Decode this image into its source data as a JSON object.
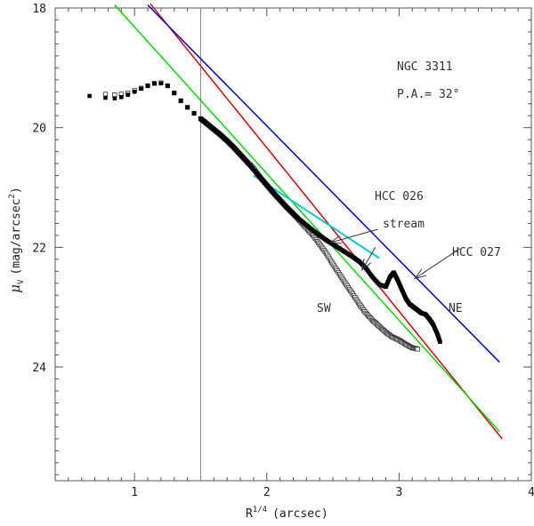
{
  "chart_data": {
    "type": "scatter",
    "title": "",
    "xlabel": "R",
    "xlabel_sup": "1/4",
    "xlabel_unit": "(arcsec)",
    "ylabel_sym": "μ",
    "ylabel_sub": "V",
    "ylabel_unit": "(mag/arcsec",
    "ylabel_sup": "2",
    "ylabel_close": ")",
    "xlim": [
      0.4,
      4.0
    ],
    "ylim": [
      18.0,
      25.9
    ],
    "y_inverted": true,
    "x_major_ticks": [
      1,
      2,
      3,
      4
    ],
    "x_tick_labels": [
      "1",
      "2",
      "3",
      "4"
    ],
    "y_major_ticks": [
      18,
      20,
      22,
      24
    ],
    "y_tick_labels": [
      "18",
      "20",
      "22",
      "24"
    ],
    "vertical_line_x": 1.5,
    "text_labels": {
      "galaxy": "NGC 3311",
      "pa": "P.A.= 32°",
      "hcc026": "HCC 026",
      "stream": "stream",
      "hcc027": "HCC 027",
      "sw": "SW",
      "ne": "NE"
    },
    "arrows": [
      {
        "name": "hcc026-arrow",
        "from": [
          2.84,
          21.7
        ],
        "to": [
          2.48,
          21.92
        ]
      },
      {
        "name": "stream-arrow",
        "from": [
          2.82,
          22.0
        ],
        "to": [
          2.72,
          22.38
        ]
      },
      {
        "name": "hcc027-arrow",
        "from": [
          3.46,
          22.02
        ],
        "to": [
          3.12,
          22.52
        ]
      }
    ],
    "series": [
      {
        "name": "NE profile",
        "marker": "filled-square",
        "color": "#000000",
        "x": [
          0.66,
          0.78,
          0.85,
          0.9,
          0.95,
          1.0,
          1.05,
          1.1,
          1.15,
          1.2,
          1.25,
          1.3,
          1.35,
          1.4,
          1.45,
          1.5,
          1.55,
          1.6,
          1.65,
          1.7,
          1.75,
          1.8,
          1.85,
          1.9,
          1.95,
          2.0,
          2.05,
          2.1,
          2.15,
          2.2,
          2.25,
          2.3,
          2.35,
          2.4,
          2.45,
          2.5,
          2.55,
          2.6,
          2.65,
          2.7,
          2.75,
          2.8,
          2.85,
          2.9,
          2.93,
          2.96,
          2.99,
          3.02,
          3.05,
          3.08,
          3.11,
          3.14,
          3.17,
          3.2,
          3.23,
          3.26,
          3.29,
          3.31
        ],
        "y": [
          19.47,
          19.5,
          19.51,
          19.49,
          19.45,
          19.4,
          19.35,
          19.3,
          19.26,
          19.26,
          19.3,
          19.42,
          19.55,
          19.66,
          19.76,
          19.85,
          19.94,
          20.03,
          20.12,
          20.22,
          20.33,
          20.45,
          20.57,
          20.7,
          20.83,
          20.96,
          21.09,
          21.21,
          21.33,
          21.44,
          21.54,
          21.63,
          21.72,
          21.8,
          21.88,
          21.95,
          22.02,
          22.09,
          22.16,
          22.24,
          22.35,
          22.5,
          22.62,
          22.66,
          22.5,
          22.42,
          22.55,
          22.7,
          22.85,
          22.95,
          23.0,
          23.05,
          23.1,
          23.12,
          23.2,
          23.3,
          23.45,
          23.58
        ]
      },
      {
        "name": "SW profile",
        "marker": "open-square",
        "color": "#333333",
        "x": [
          0.78,
          0.85,
          0.9,
          0.95,
          1.0,
          1.05,
          1.1,
          1.15,
          1.2,
          1.25,
          1.3,
          1.35,
          1.4,
          1.45,
          1.5,
          1.55,
          1.6,
          1.65,
          1.7,
          1.75,
          1.8,
          1.85,
          1.9,
          1.95,
          2.0,
          2.05,
          2.1,
          2.15,
          2.2,
          2.25,
          2.3,
          2.35,
          2.4,
          2.45,
          2.5,
          2.55,
          2.6,
          2.65,
          2.7,
          2.75,
          2.8,
          2.85,
          2.9,
          2.95,
          3.0,
          3.05,
          3.1,
          3.14
        ],
        "y": [
          19.44,
          19.45,
          19.44,
          19.42,
          19.38,
          19.34,
          19.3,
          19.26,
          19.25,
          19.3,
          19.42,
          19.55,
          19.66,
          19.76,
          19.85,
          19.94,
          20.03,
          20.12,
          20.22,
          20.33,
          20.45,
          20.57,
          20.68,
          20.83,
          20.96,
          21.09,
          21.21,
          21.33,
          21.44,
          21.56,
          21.68,
          21.8,
          21.95,
          22.1,
          22.28,
          22.45,
          22.62,
          22.78,
          22.95,
          23.1,
          23.22,
          23.32,
          23.42,
          23.5,
          23.55,
          23.62,
          23.68,
          23.7
        ]
      }
    ],
    "fit_lines": [
      {
        "name": "red fit",
        "color": "#e00000",
        "x": [
          1.12,
          3.78
        ],
        "y": [
          17.93,
          25.2
        ]
      },
      {
        "name": "blue fit",
        "color": "#0000dd",
        "x": [
          1.1,
          3.76
        ],
        "y": [
          17.95,
          23.92
        ]
      },
      {
        "name": "green fit",
        "color": "#00dd00",
        "x": [
          0.85,
          3.76
        ],
        "y": [
          17.95,
          25.08
        ]
      },
      {
        "name": "cyan fit",
        "color": "#00cccc",
        "x": [
          1.9,
          2.85
        ],
        "y": [
          20.8,
          22.18
        ]
      }
    ]
  }
}
